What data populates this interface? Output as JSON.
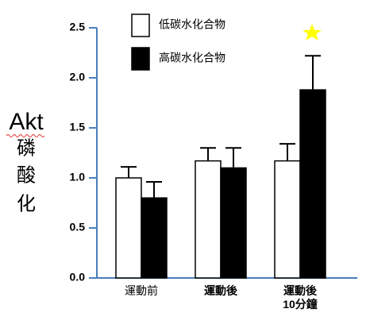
{
  "chart_data": {
    "type": "bar",
    "y_label_lines": [
      "Akt",
      "磷",
      "酸",
      "化"
    ],
    "categories": [
      "運動前",
      "運動後",
      "運動後\n10分鐘"
    ],
    "series": [
      {
        "name": "低碳水化合物",
        "color": "#ffffff",
        "values": [
          1.0,
          1.17,
          1.17
        ],
        "errors": [
          0.11,
          0.13,
          0.17
        ]
      },
      {
        "name": "高碳水化合物",
        "color": "#000000",
        "values": [
          0.8,
          1.1,
          1.88
        ],
        "errors": [
          0.16,
          0.2,
          0.34
        ]
      }
    ],
    "ylim": [
      0,
      2.5
    ],
    "yticks": [
      {
        "value": 0,
        "label": "0.0"
      },
      0.5,
      {
        "value": 1,
        "label": "1.0"
      },
      1.5,
      {
        "value": 2,
        "label": "2.0"
      },
      2.5
    ],
    "axis_color": "#4a7ebb"
  }
}
